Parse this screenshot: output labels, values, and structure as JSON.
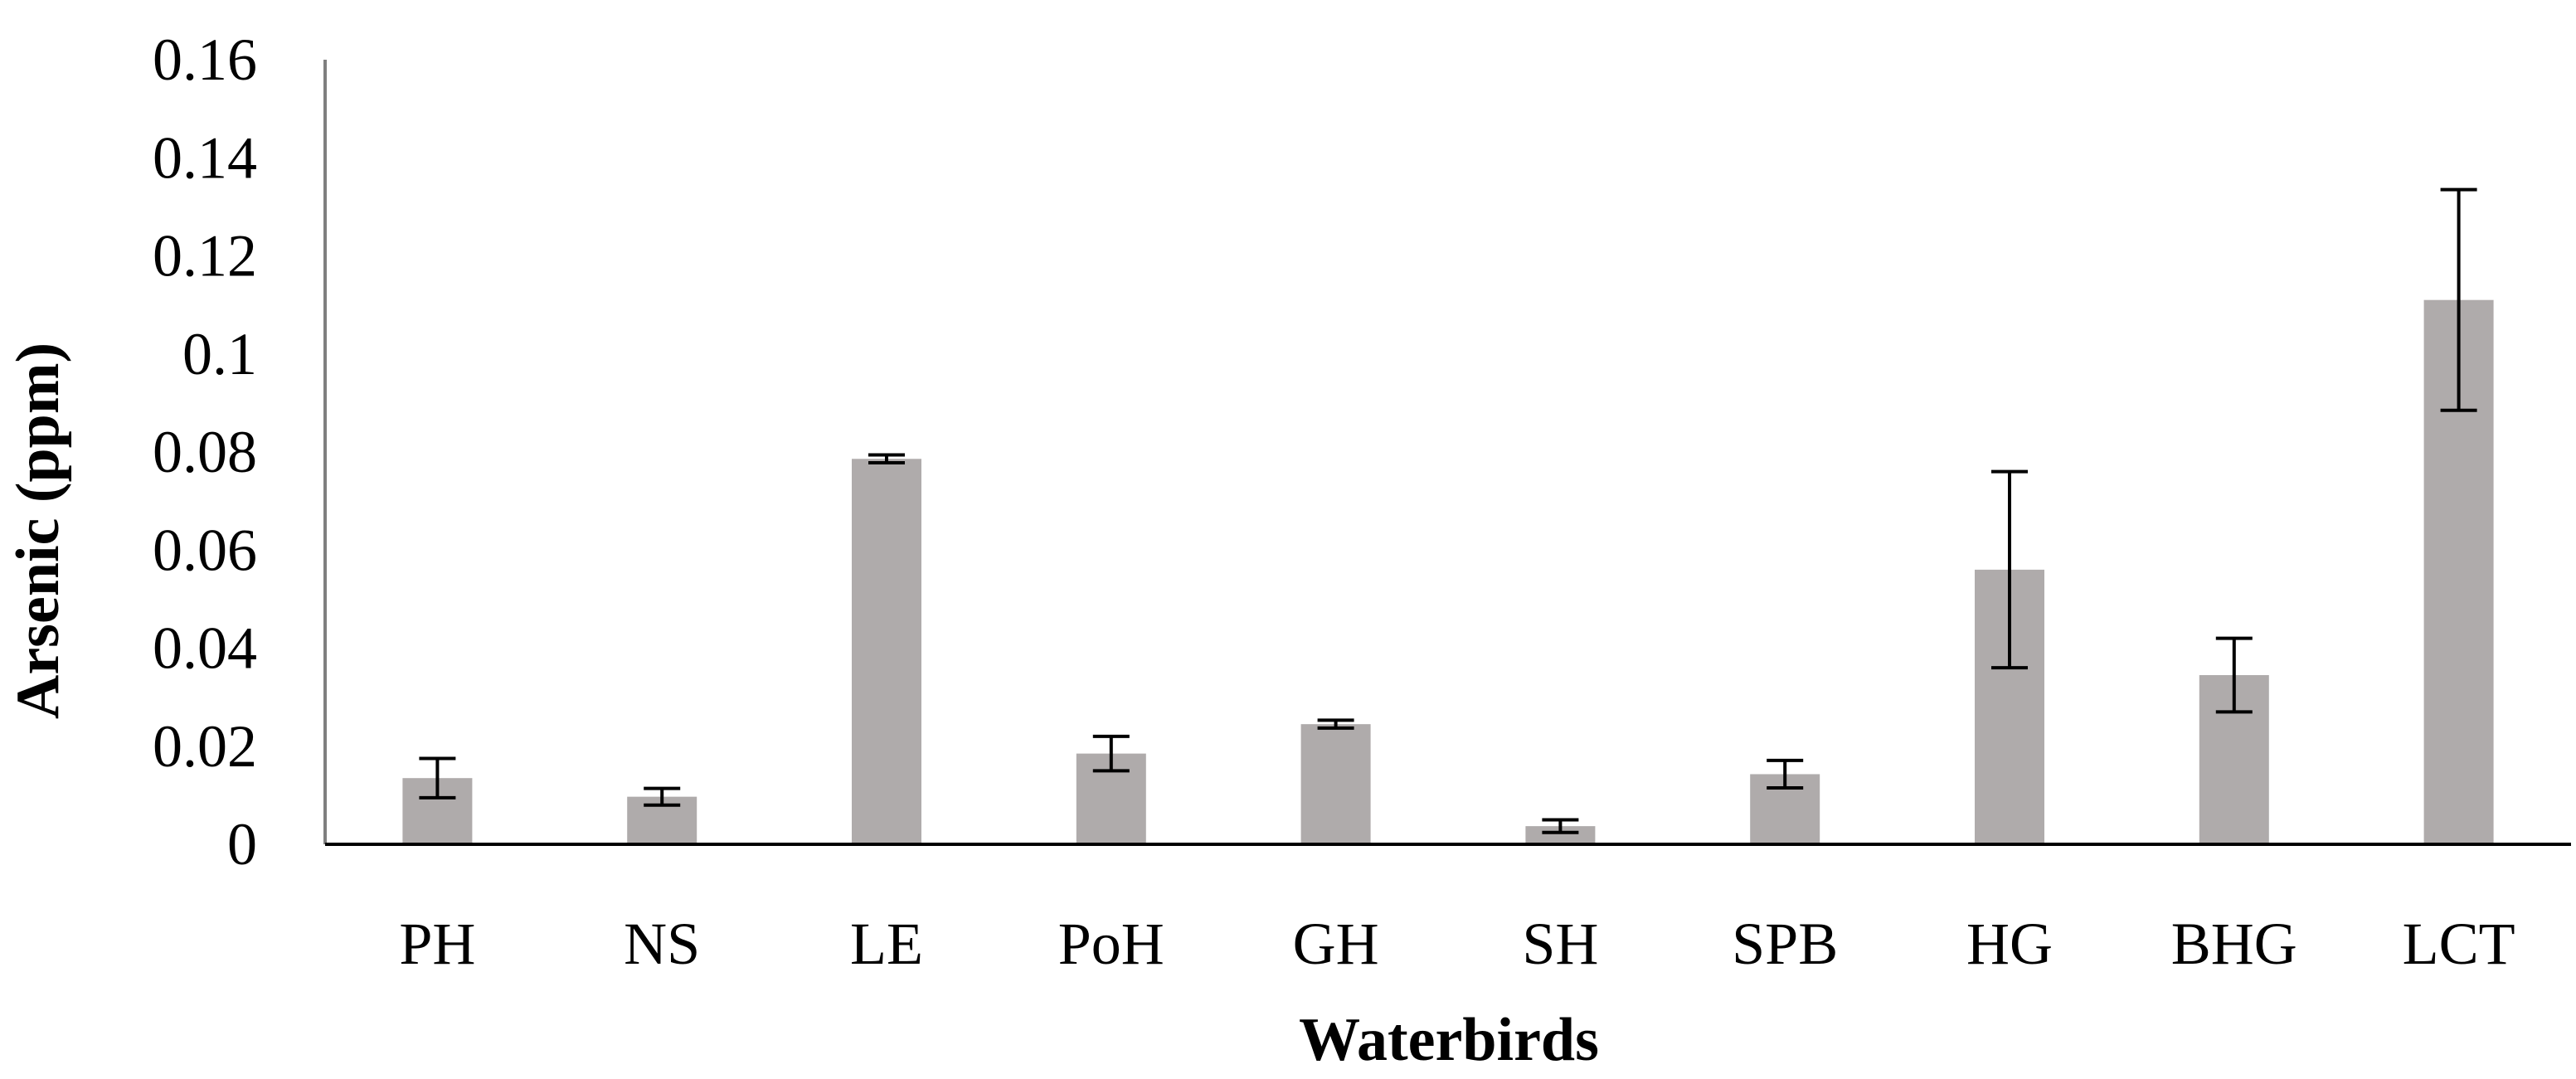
{
  "chart_data": {
    "type": "bar",
    "title": "",
    "xlabel": "Waterbirds",
    "ylabel": "Arsenic (ppm)",
    "ylim": [
      0,
      0.16
    ],
    "yticks": [
      0,
      0.02,
      0.04,
      0.06,
      0.08,
      0.1,
      0.12,
      0.14,
      0.16
    ],
    "ytick_labels": [
      "0",
      "0.02",
      "0.04",
      "0.06",
      "0.08",
      "0.1",
      "0.12",
      "0.14",
      "0.16"
    ],
    "categories": [
      "PH",
      "NS",
      "LE",
      "PoH",
      "GH",
      "SH",
      "SPB",
      "HG",
      "BHG",
      "LCT"
    ],
    "values": [
      0.0135,
      0.0097,
      0.0786,
      0.0185,
      0.0245,
      0.0037,
      0.0143,
      0.056,
      0.0345,
      0.111
    ],
    "errors": [
      0.004,
      0.0017,
      0.0008,
      0.0035,
      0.0008,
      0.0013,
      0.0028,
      0.02,
      0.0075,
      0.0225
    ],
    "grid": false,
    "legend": null,
    "colors": {
      "bar": "#afabab",
      "error_bar": "#000000",
      "axis": "#000000"
    }
  }
}
